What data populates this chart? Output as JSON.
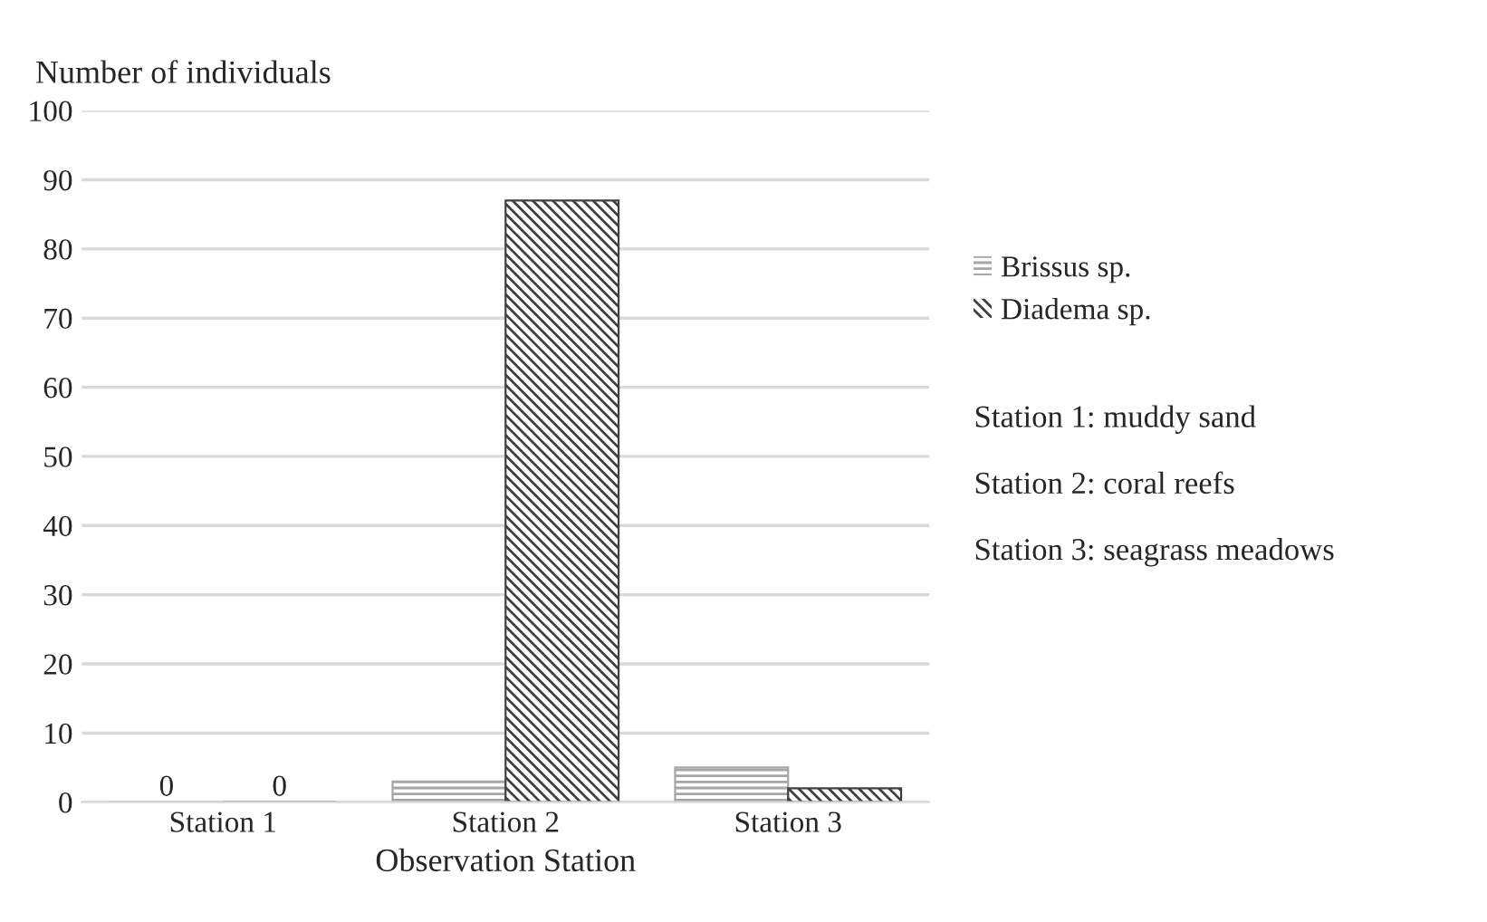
{
  "chart_data": {
    "type": "bar",
    "ylabel": "Number of individuals",
    "xlabel": "Observation Station",
    "categories": [
      "Station 1",
      "Station 2",
      "Station 3"
    ],
    "series": [
      {
        "name": "Brissus sp.",
        "color": "#a6a6a6",
        "values": [
          0,
          3,
          5
        ],
        "value_labels": [
          "0",
          null,
          null
        ]
      },
      {
        "name": "Diadema sp.",
        "color": "#404040",
        "values": [
          0,
          87,
          2
        ],
        "value_labels": [
          "0",
          null,
          null
        ]
      }
    ],
    "ylim": [
      0,
      100
    ],
    "yticks": [
      0,
      10,
      20,
      30,
      40,
      50,
      60,
      70,
      80,
      90,
      100
    ],
    "grid": "y",
    "legend": "right",
    "annotations": [
      "Station 1: muddy sand",
      "Station 2: coral reefs",
      "Station 3: seagrass meadows"
    ]
  }
}
